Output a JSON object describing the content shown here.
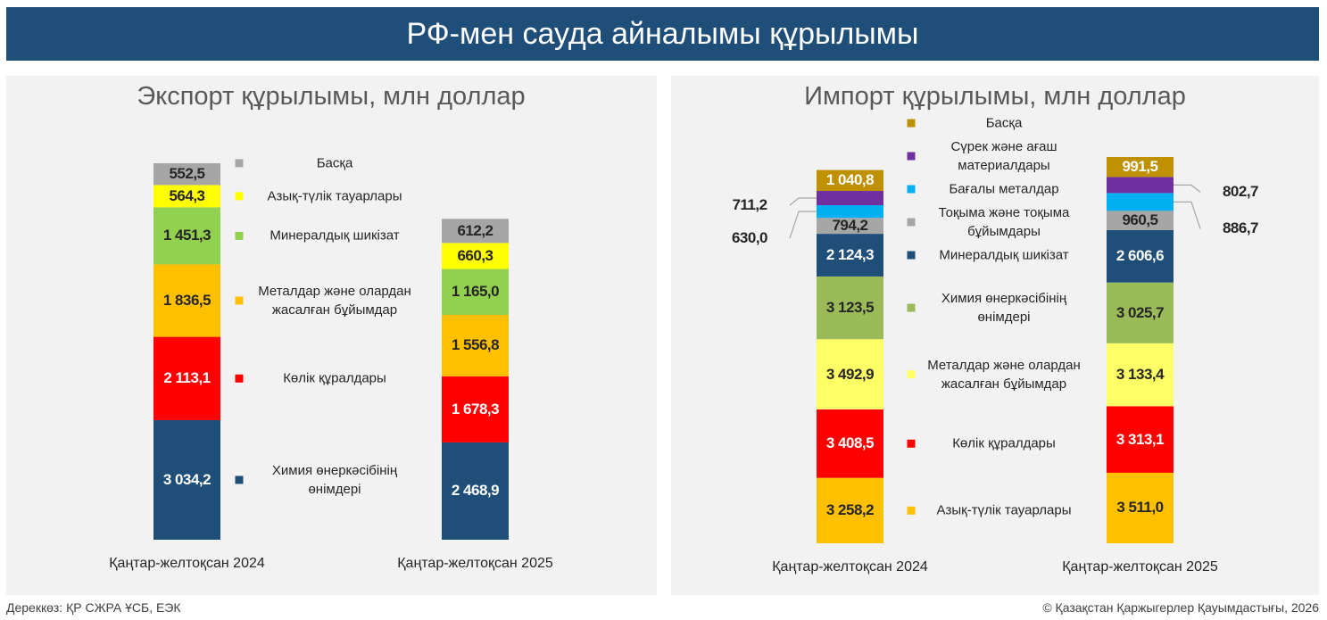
{
  "title": "РФ-мен сауда айналымы құрылымы",
  "source": "Дереккөз: ҚР СЖРА ҰСБ, ЕЭК",
  "copyright": "© Қазақстан Қаржыгерлер Қауымдастығы, 2026",
  "chart_data": [
    {
      "type": "stacked_bar",
      "title": "Экспорт құрылымы, млн доллар",
      "categories": [
        "Қаңтар-желтоқсан 2024",
        "Қаңтар-желтоқсан 2025"
      ],
      "series": [
        {
          "name": "Химия өнеркәсібінің өнімдері",
          "color": "#1f4e79",
          "values": [
            3034.2,
            2468.9
          ],
          "value_labels": [
            "3 034,2",
            "2 468,9"
          ]
        },
        {
          "name": "Көлік құралдары",
          "color": "#ff0000",
          "values": [
            2113.1,
            1678.3
          ],
          "value_labels": [
            "2 113,1",
            "1 678,3"
          ]
        },
        {
          "name": "Металдар және олардан жасалған бұйымдар",
          "color": "#ffc000",
          "values": [
            1836.5,
            1556.8
          ],
          "value_labels": [
            "1 836,5",
            "1 556,8"
          ]
        },
        {
          "name": "Минералдық шикізат",
          "color": "#92d050",
          "values": [
            1451.3,
            1165.0
          ],
          "value_labels": [
            "1 451,3",
            "1 165,0"
          ]
        },
        {
          "name": "Азық-түлік тауарлары",
          "color": "#ffff00",
          "values": [
            564.3,
            660.3
          ],
          "value_labels": [
            "564,3",
            "660,3"
          ]
        },
        {
          "name": "Басқа",
          "color": "#a6a6a6",
          "values": [
            552.5,
            612.2
          ],
          "value_labels": [
            "552,5",
            "612,2"
          ]
        }
      ]
    },
    {
      "type": "stacked_bar",
      "title": "Импорт құрылымы, млн доллар",
      "categories": [
        "Қаңтар-желтоқсан 2024",
        "Қаңтар-желтоқсан 2025"
      ],
      "series": [
        {
          "name": "Азық-түлік тауарлары",
          "color": "#ffc000",
          "values": [
            3258.2,
            3511.0
          ],
          "value_labels": [
            "3 258,2",
            "3 511,0"
          ]
        },
        {
          "name": "Көлік құралдары",
          "color": "#ff0000",
          "values": [
            3408.5,
            3313.1
          ],
          "value_labels": [
            "3 408,5",
            "3 313,1"
          ]
        },
        {
          "name": "Металдар және олардан жасалған бұйымдар",
          "color": "#ffff66",
          "values": [
            3492.9,
            3133.4
          ],
          "value_labels": [
            "3 492,9",
            "3 133,4"
          ]
        },
        {
          "name": "Химия өнеркәсібінің өнімдері",
          "color": "#9bbb59",
          "values": [
            3123.5,
            3025.7
          ],
          "value_labels": [
            "3 123,5",
            "3 025,7"
          ]
        },
        {
          "name": "Минералдық шикізат",
          "color": "#1f4e79",
          "values": [
            2124.3,
            2606.6
          ],
          "value_labels": [
            "2 124,3",
            "2 606,6"
          ]
        },
        {
          "name": "Тоқыма және тоқыма бұйымдары",
          "color": "#a6a6a6",
          "values": [
            794.2,
            960.5
          ],
          "value_labels": [
            "794,2",
            "960,5"
          ]
        },
        {
          "name": "Бағалы металдар",
          "color": "#00b0f0",
          "values": [
            630.0,
            886.7
          ],
          "value_labels": [
            "630,0",
            "886,7"
          ]
        },
        {
          "name": "Сүрек және ағаш материалдары",
          "color": "#7030a0",
          "values": [
            711.2,
            802.7
          ],
          "value_labels": [
            "711,2",
            "802,7"
          ]
        },
        {
          "name": "Басқа",
          "color": "#bf9000",
          "values": [
            1040.8,
            991.5
          ],
          "value_labels": [
            "1 040,8",
            "991,5"
          ]
        }
      ]
    }
  ]
}
